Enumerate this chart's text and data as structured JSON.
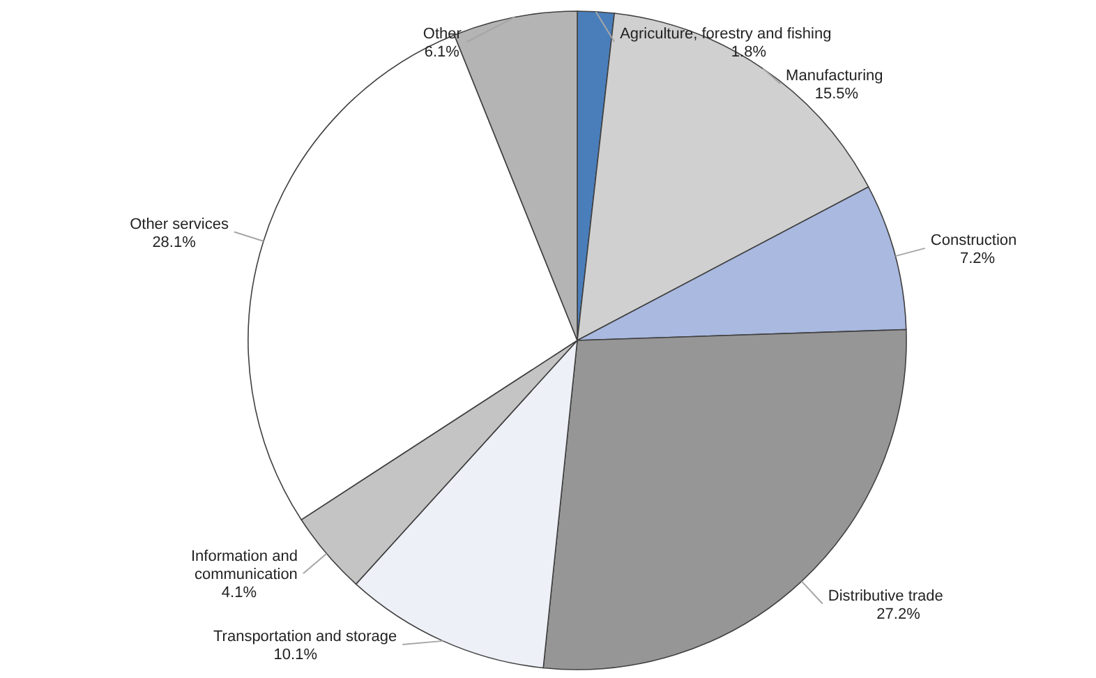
{
  "chart_data": {
    "type": "pie",
    "categories": [
      "Agriculture, forestry and fishing",
      "Manufacturing",
      "Construction",
      "Distributive trade",
      "Transportation and storage",
      "Information and communication",
      "Other services",
      "Other"
    ],
    "values": [
      1.8,
      15.5,
      7.2,
      27.2,
      10.1,
      4.1,
      28.1,
      6.1
    ],
    "colors": [
      "#4a7ebb",
      "#d0d0d0",
      "#a9b9e0",
      "#969696",
      "#eef0f8",
      "#c4c4c4",
      "#ffffff",
      "#b4b4b4"
    ],
    "value_labels": [
      "1.8%",
      "15.5%",
      "7.2%",
      "27.2%",
      "10.1%",
      "4.1%",
      "28.1%",
      "6.1%"
    ]
  }
}
